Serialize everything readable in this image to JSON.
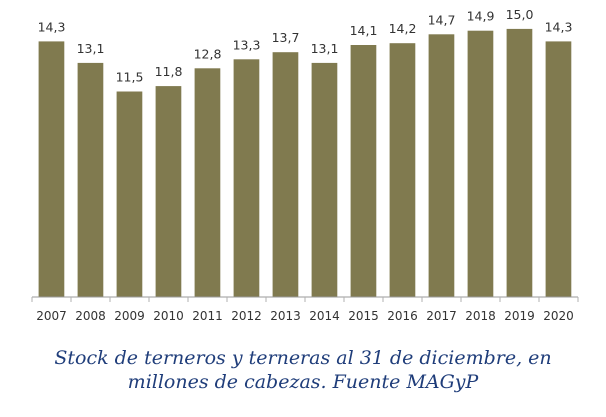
{
  "chart_data": {
    "type": "bar",
    "categories": [
      "2007",
      "2008",
      "2009",
      "2010",
      "2011",
      "2012",
      "2013",
      "2014",
      "2015",
      "2016",
      "2017",
      "2018",
      "2019",
      "2020"
    ],
    "values": [
      14.3,
      13.1,
      11.5,
      11.8,
      12.8,
      13.3,
      13.7,
      13.1,
      14.1,
      14.2,
      14.7,
      14.9,
      15.0,
      14.3
    ],
    "data_labels": [
      "14,3",
      "13,1",
      "11,5",
      "11,8",
      "12,8",
      "13,3",
      "13,7",
      "13,1",
      "14,1",
      "14,2",
      "14,7",
      "14,9",
      "15,0",
      "14,3"
    ],
    "title": "",
    "xlabel": "",
    "ylabel": "",
    "ylim": [
      0,
      15.5
    ],
    "grid": false,
    "legend": "none",
    "bar_color": "#807A4F"
  },
  "caption": {
    "line1": "Stock de terneros y terneras al 31 de diciembre, en",
    "line2": "millones de cabezas. Fuente MAGyP"
  },
  "colors": {
    "caption": "#1F3D7A",
    "bar": "#807A4F"
  }
}
